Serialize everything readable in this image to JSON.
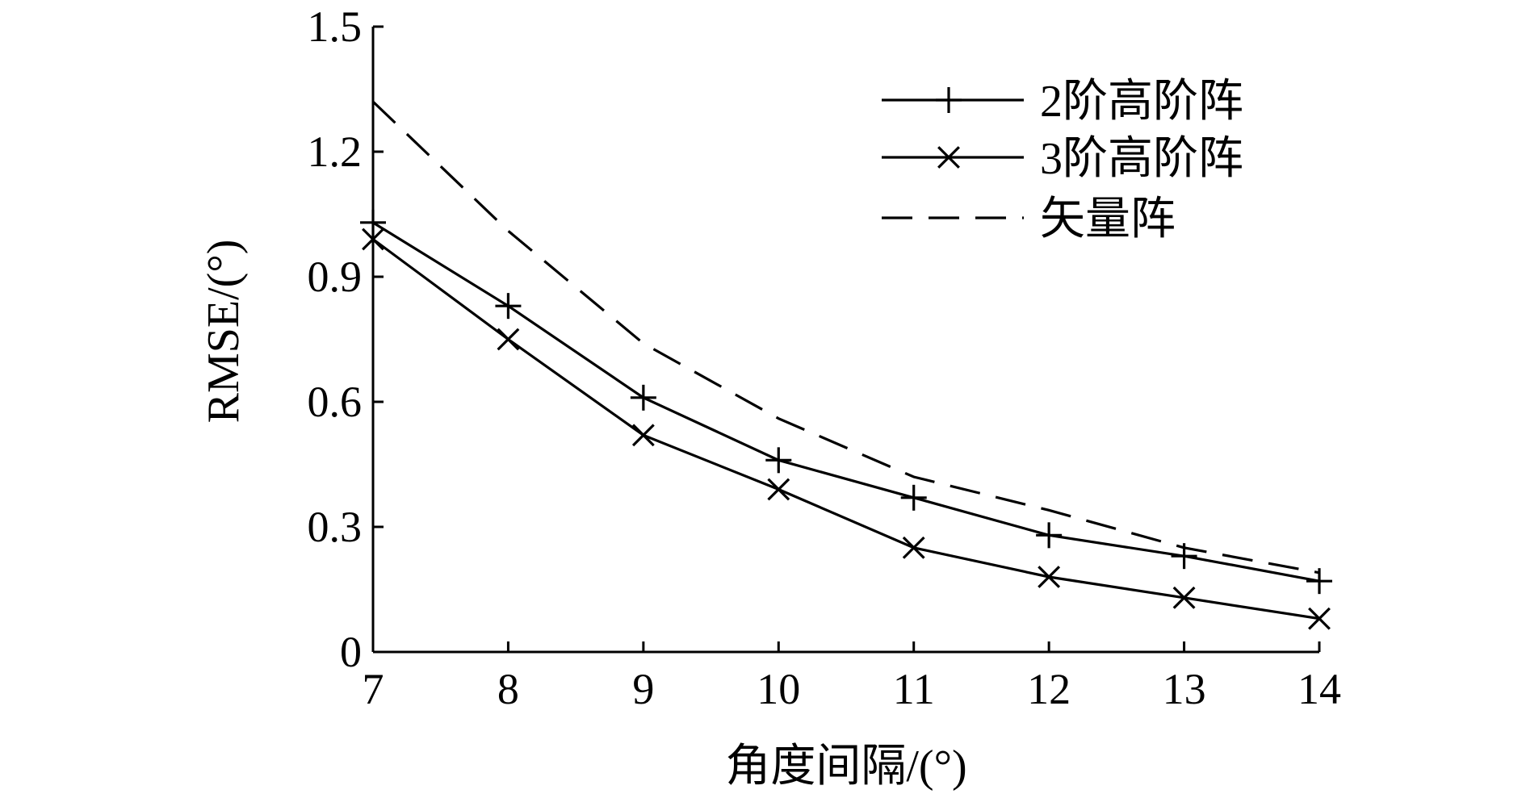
{
  "chart_data": {
    "type": "line",
    "x": [
      7,
      8,
      9,
      10,
      11,
      12,
      13,
      14
    ],
    "xlabel": "角度间隔/(°)",
    "ylabel": "RMSE/(°)",
    "xlim": [
      7,
      14
    ],
    "ylim": [
      0,
      1.5
    ],
    "xticks": [
      7,
      8,
      9,
      10,
      11,
      12,
      13,
      14
    ],
    "yticks": [
      0,
      0.3,
      0.6,
      0.9,
      1.2,
      1.5
    ],
    "xtick_labels": [
      "7",
      "8",
      "9",
      "10",
      "11",
      "12",
      "13",
      "14"
    ],
    "ytick_labels": [
      "0",
      "0.3",
      "0.6",
      "0.9",
      "1.2",
      "1.5"
    ],
    "grid": false,
    "legend_position": "top-right",
    "series": [
      {
        "name": "2阶高阶阵",
        "marker": "plus",
        "linestyle": "solid",
        "color": "#000000",
        "values": [
          1.03,
          0.83,
          0.61,
          0.46,
          0.37,
          0.28,
          0.23,
          0.17
        ]
      },
      {
        "name": "3阶高阶阵",
        "marker": "x",
        "linestyle": "solid",
        "color": "#000000",
        "values": [
          0.99,
          0.75,
          0.52,
          0.39,
          0.25,
          0.18,
          0.13,
          0.08
        ]
      },
      {
        "name": "矢量阵",
        "marker": "none",
        "linestyle": "dashed",
        "color": "#000000",
        "values": [
          1.32,
          1.01,
          0.74,
          0.56,
          0.42,
          0.34,
          0.25,
          0.19
        ]
      }
    ]
  }
}
